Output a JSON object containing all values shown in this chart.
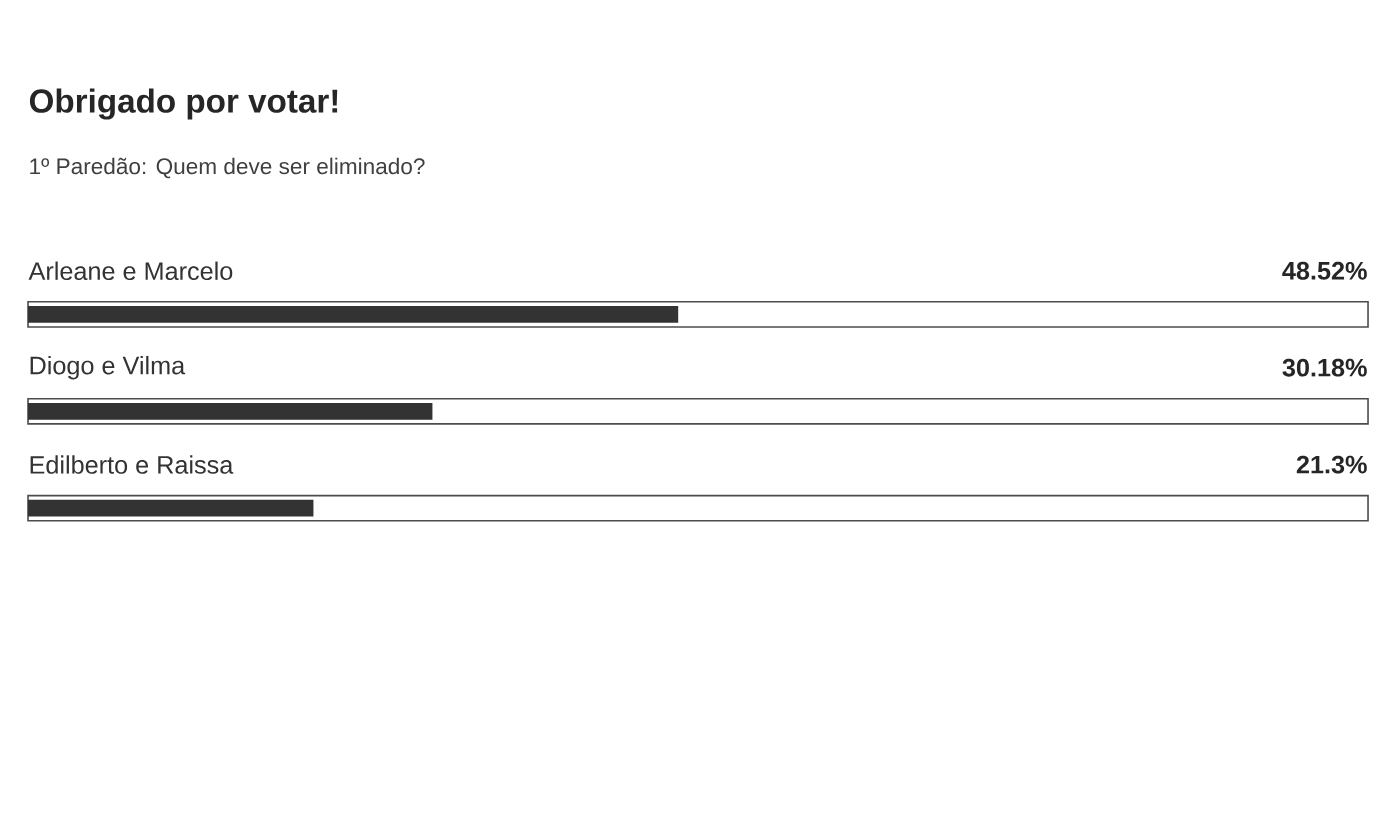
{
  "chart_data": {
    "type": "bar",
    "orientation": "horizontal",
    "title": "Obrigado por votar!",
    "subtitle": "1º Paredão: Quem deve ser eliminado?",
    "categories": [
      "Arleane e Marcelo",
      "Diogo e Vilma",
      "Edilberto e Raissa"
    ],
    "values": [
      48.52,
      30.18,
      21.3
    ],
    "value_labels": [
      "48.52%",
      "30.18%",
      "21.3%"
    ],
    "color": "#333333",
    "xlim": [
      0,
      100
    ]
  }
}
